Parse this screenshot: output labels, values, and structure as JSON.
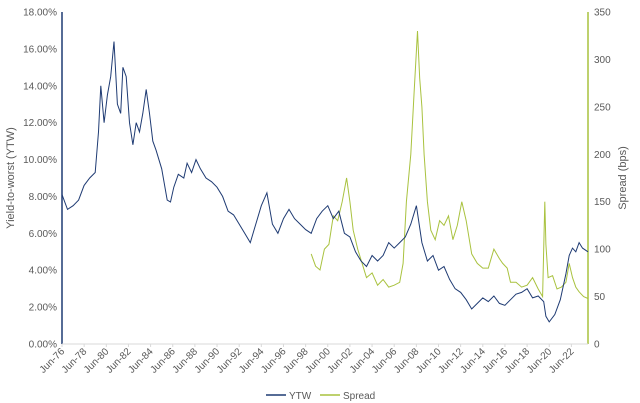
{
  "colors": {
    "ytw": "#1f3b73",
    "spread": "#a9c23f",
    "axis": "#d9d9d9",
    "text": "#595959"
  },
  "chart_data": {
    "type": "line",
    "title": "",
    "grid": false,
    "legend": {
      "position": "bottom",
      "entries": [
        "YTW",
        "Spread"
      ]
    },
    "x_axis": {
      "ticks": [
        "Jun-76",
        "Jun-78",
        "Jun-80",
        "Jun-82",
        "Jun-84",
        "Jun-86",
        "Jun-88",
        "Jun-90",
        "Jun-92",
        "Jun-94",
        "Jun-96",
        "Jun-98",
        "Jun-00",
        "Jun-02",
        "Jun-04",
        "Jun-06",
        "Jun-08",
        "Jun-10",
        "Jun-12",
        "Jun-14",
        "Jun-16",
        "Jun-18",
        "Jun-20",
        "Jun-22"
      ],
      "range": [
        1976.5,
        2024.0
      ]
    },
    "y_left": {
      "label": "Yield-to-worst (YTW)",
      "range": [
        0,
        18
      ],
      "ticks": [
        "0.00%",
        "2.00%",
        "4.00%",
        "6.00%",
        "8.00%",
        "10.00%",
        "12.00%",
        "14.00%",
        "16.00%",
        "18.00%"
      ]
    },
    "y_right": {
      "label": "Spread (bps)",
      "range": [
        0,
        350
      ],
      "ticks": [
        "0",
        "50",
        "100",
        "150",
        "200",
        "250",
        "300",
        "350"
      ]
    },
    "series": [
      {
        "name": "YTW",
        "axis": "left",
        "x": [
          1976.5,
          1977.0,
          1977.5,
          1978.0,
          1978.5,
          1979.0,
          1979.5,
          1979.8,
          1980.0,
          1980.3,
          1980.6,
          1980.9,
          1981.2,
          1981.5,
          1981.8,
          1982.0,
          1982.3,
          1982.6,
          1982.9,
          1983.2,
          1983.5,
          1983.8,
          1984.1,
          1984.4,
          1984.7,
          1985.0,
          1985.5,
          1986.0,
          1986.3,
          1986.6,
          1987.0,
          1987.5,
          1987.8,
          1988.2,
          1988.6,
          1989.0,
          1989.5,
          1990.0,
          1990.5,
          1991.0,
          1991.5,
          1992.0,
          1992.5,
          1993.0,
          1993.5,
          1994.0,
          1994.5,
          1995.0,
          1995.5,
          1996.0,
          1996.5,
          1997.0,
          1997.5,
          1998.0,
          1998.5,
          1999.0,
          1999.5,
          2000.0,
          2000.5,
          2001.0,
          2001.5,
          2002.0,
          2002.5,
          2003.0,
          2003.5,
          2004.0,
          2004.5,
          2005.0,
          2005.5,
          2006.0,
          2006.5,
          2007.0,
          2007.5,
          2008.0,
          2008.5,
          2009.0,
          2009.5,
          2010.0,
          2010.5,
          2011.0,
          2011.5,
          2012.0,
          2012.5,
          2013.0,
          2013.5,
          2014.0,
          2014.5,
          2015.0,
          2015.5,
          2016.0,
          2016.5,
          2017.0,
          2017.5,
          2018.0,
          2018.5,
          2019.0,
          2019.5,
          2020.0,
          2020.2,
          2020.5,
          2021.0,
          2021.5,
          2022.0,
          2022.3,
          2022.6,
          2022.9,
          2023.2,
          2023.5,
          2024.0
        ],
        "values": [
          8.1,
          7.3,
          7.5,
          7.8,
          8.6,
          9.0,
          9.3,
          11.5,
          14.0,
          12.0,
          13.5,
          14.5,
          16.4,
          13.0,
          12.5,
          15.0,
          14.5,
          12.0,
          10.8,
          12.0,
          11.5,
          12.5,
          13.8,
          12.5,
          11.0,
          10.5,
          9.5,
          7.8,
          7.7,
          8.5,
          9.2,
          9.0,
          9.8,
          9.3,
          10.0,
          9.5,
          9.0,
          8.8,
          8.5,
          8.0,
          7.2,
          7.0,
          6.5,
          6.0,
          5.5,
          6.5,
          7.5,
          8.2,
          6.5,
          6.0,
          6.8,
          7.3,
          6.8,
          6.5,
          6.2,
          6.0,
          6.8,
          7.2,
          7.5,
          6.8,
          7.2,
          6.0,
          5.8,
          5.0,
          4.5,
          4.2,
          4.8,
          4.5,
          4.8,
          5.5,
          5.2,
          5.5,
          5.8,
          6.5,
          7.5,
          5.5,
          4.5,
          4.8,
          4.0,
          4.2,
          3.5,
          3.0,
          2.8,
          2.4,
          1.9,
          2.2,
          2.5,
          2.3,
          2.6,
          2.2,
          2.1,
          2.4,
          2.7,
          2.8,
          3.0,
          2.5,
          2.6,
          2.3,
          1.5,
          1.2,
          1.6,
          2.4,
          3.8,
          4.8,
          5.2,
          5.0,
          5.5,
          5.2,
          5.0
        ]
      },
      {
        "name": "Spread",
        "axis": "right",
        "x": [
          1999.0,
          1999.4,
          1999.8,
          2000.2,
          2000.6,
          2001.0,
          2001.4,
          2001.8,
          2002.2,
          2002.5,
          2002.8,
          2003.2,
          2003.6,
          2004.0,
          2004.5,
          2005.0,
          2005.5,
          2006.0,
          2006.5,
          2007.0,
          2007.3,
          2007.6,
          2008.0,
          2008.3,
          2008.6,
          2008.8,
          2009.0,
          2009.2,
          2009.5,
          2009.8,
          2010.2,
          2010.6,
          2011.0,
          2011.4,
          2011.8,
          2012.2,
          2012.6,
          2013.0,
          2013.5,
          2014.0,
          2014.5,
          2015.0,
          2015.5,
          2016.0,
          2016.3,
          2016.7,
          2017.0,
          2017.5,
          2018.0,
          2018.5,
          2019.0,
          2019.5,
          2019.9,
          2020.1,
          2020.2,
          2020.4,
          2020.8,
          2021.2,
          2021.6,
          2022.0,
          2022.3,
          2022.6,
          2022.9,
          2023.2,
          2023.6,
          2024.0
        ],
        "values": [
          95,
          82,
          78,
          100,
          105,
          135,
          130,
          150,
          175,
          150,
          120,
          100,
          85,
          70,
          75,
          62,
          68,
          60,
          62,
          65,
          85,
          150,
          200,
          265,
          330,
          280,
          250,
          200,
          150,
          120,
          110,
          130,
          125,
          135,
          110,
          125,
          150,
          130,
          95,
          85,
          80,
          80,
          100,
          90,
          85,
          80,
          65,
          65,
          60,
          62,
          70,
          58,
          50,
          150,
          105,
          70,
          72,
          58,
          60,
          65,
          85,
          70,
          60,
          55,
          50,
          48
        ]
      }
    ]
  }
}
